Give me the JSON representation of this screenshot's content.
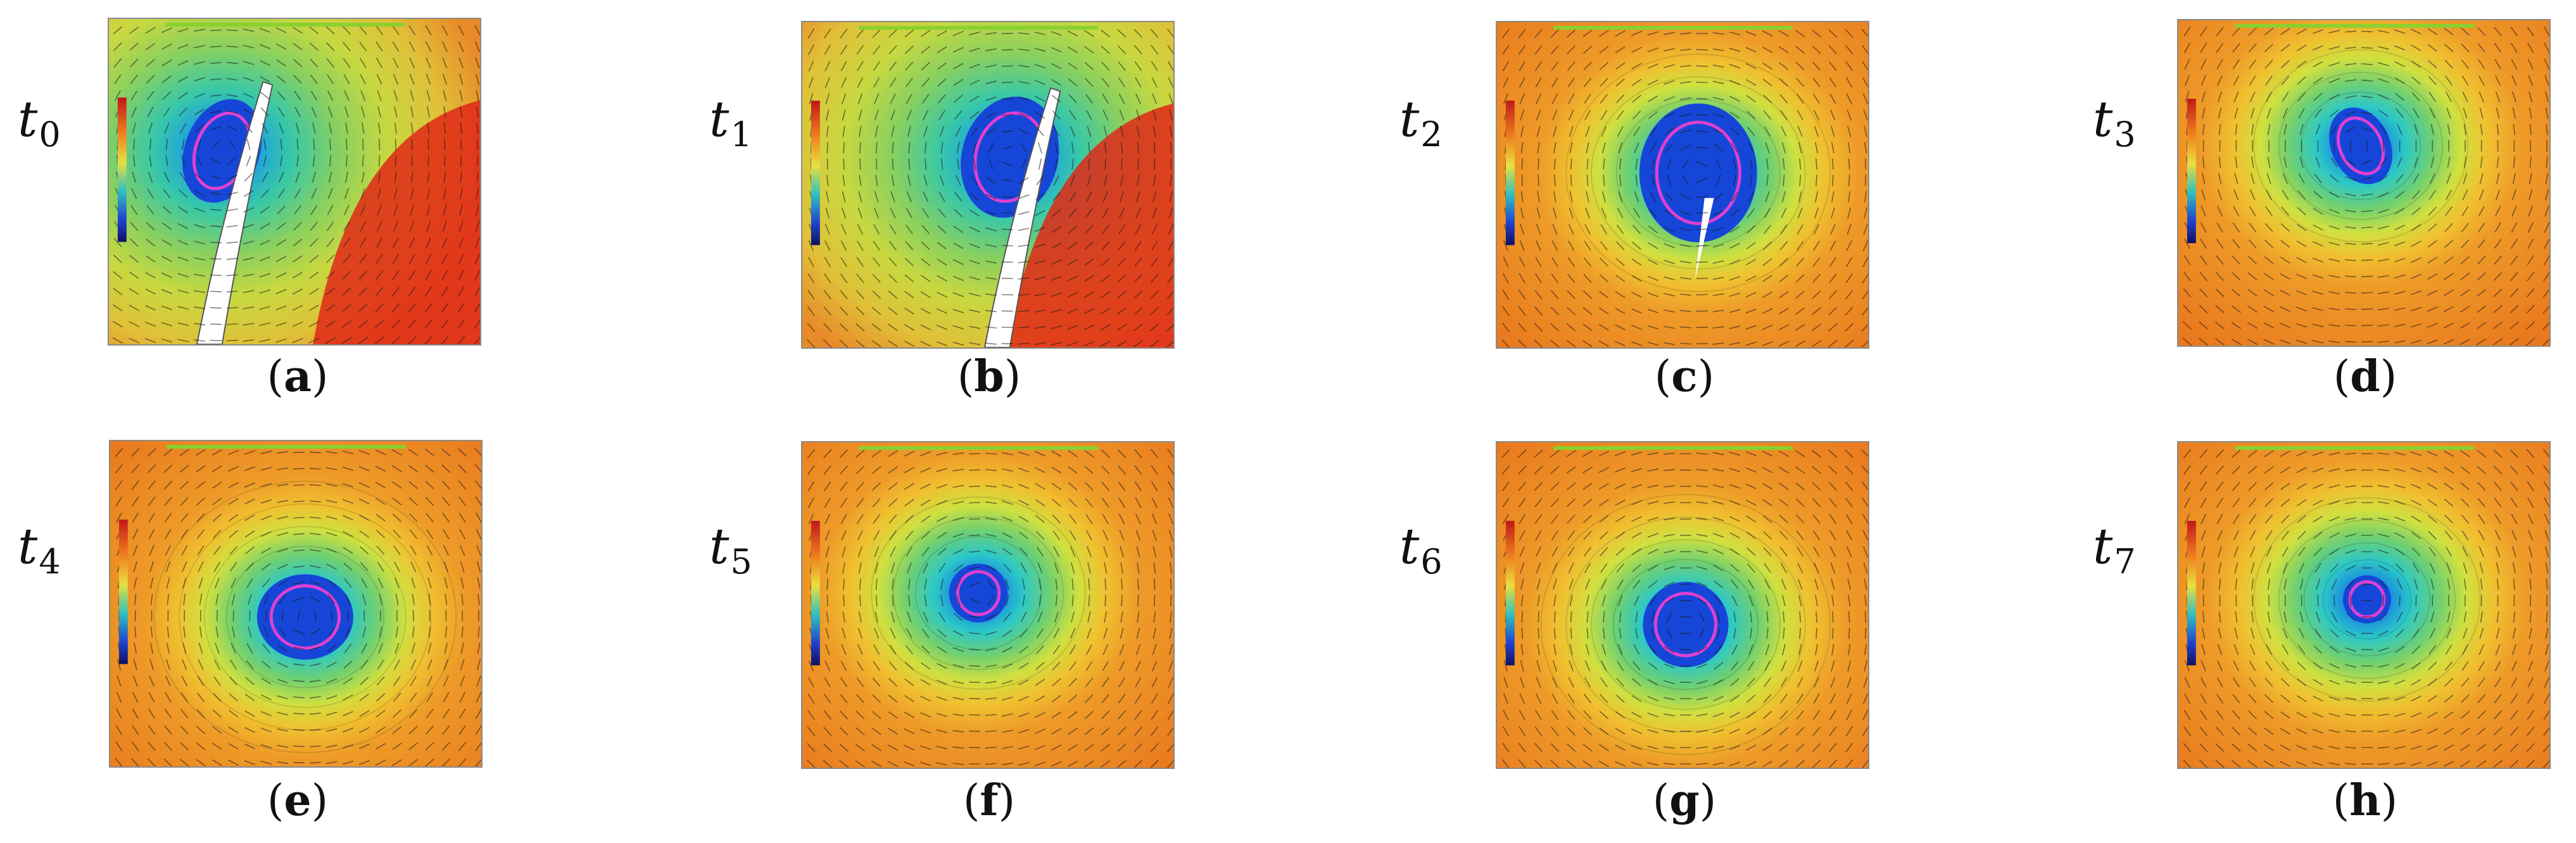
{
  "panels": [
    {
      "time_sub": "0",
      "letter": "a"
    },
    {
      "time_sub": "1",
      "letter": "b"
    },
    {
      "time_sub": "2",
      "letter": "c"
    },
    {
      "time_sub": "3",
      "letter": "d"
    },
    {
      "time_sub": "4",
      "letter": "e"
    },
    {
      "time_sub": "5",
      "letter": "f"
    },
    {
      "time_sub": "6",
      "letter": "g"
    },
    {
      "time_sub": "7",
      "letter": "h"
    }
  ],
  "colors": {
    "vortex_core": "#1646d8",
    "core_contour": "#e040d0",
    "far_field": "#e9781e",
    "hot_region": "#e02818",
    "blade": "#ffffff"
  }
}
